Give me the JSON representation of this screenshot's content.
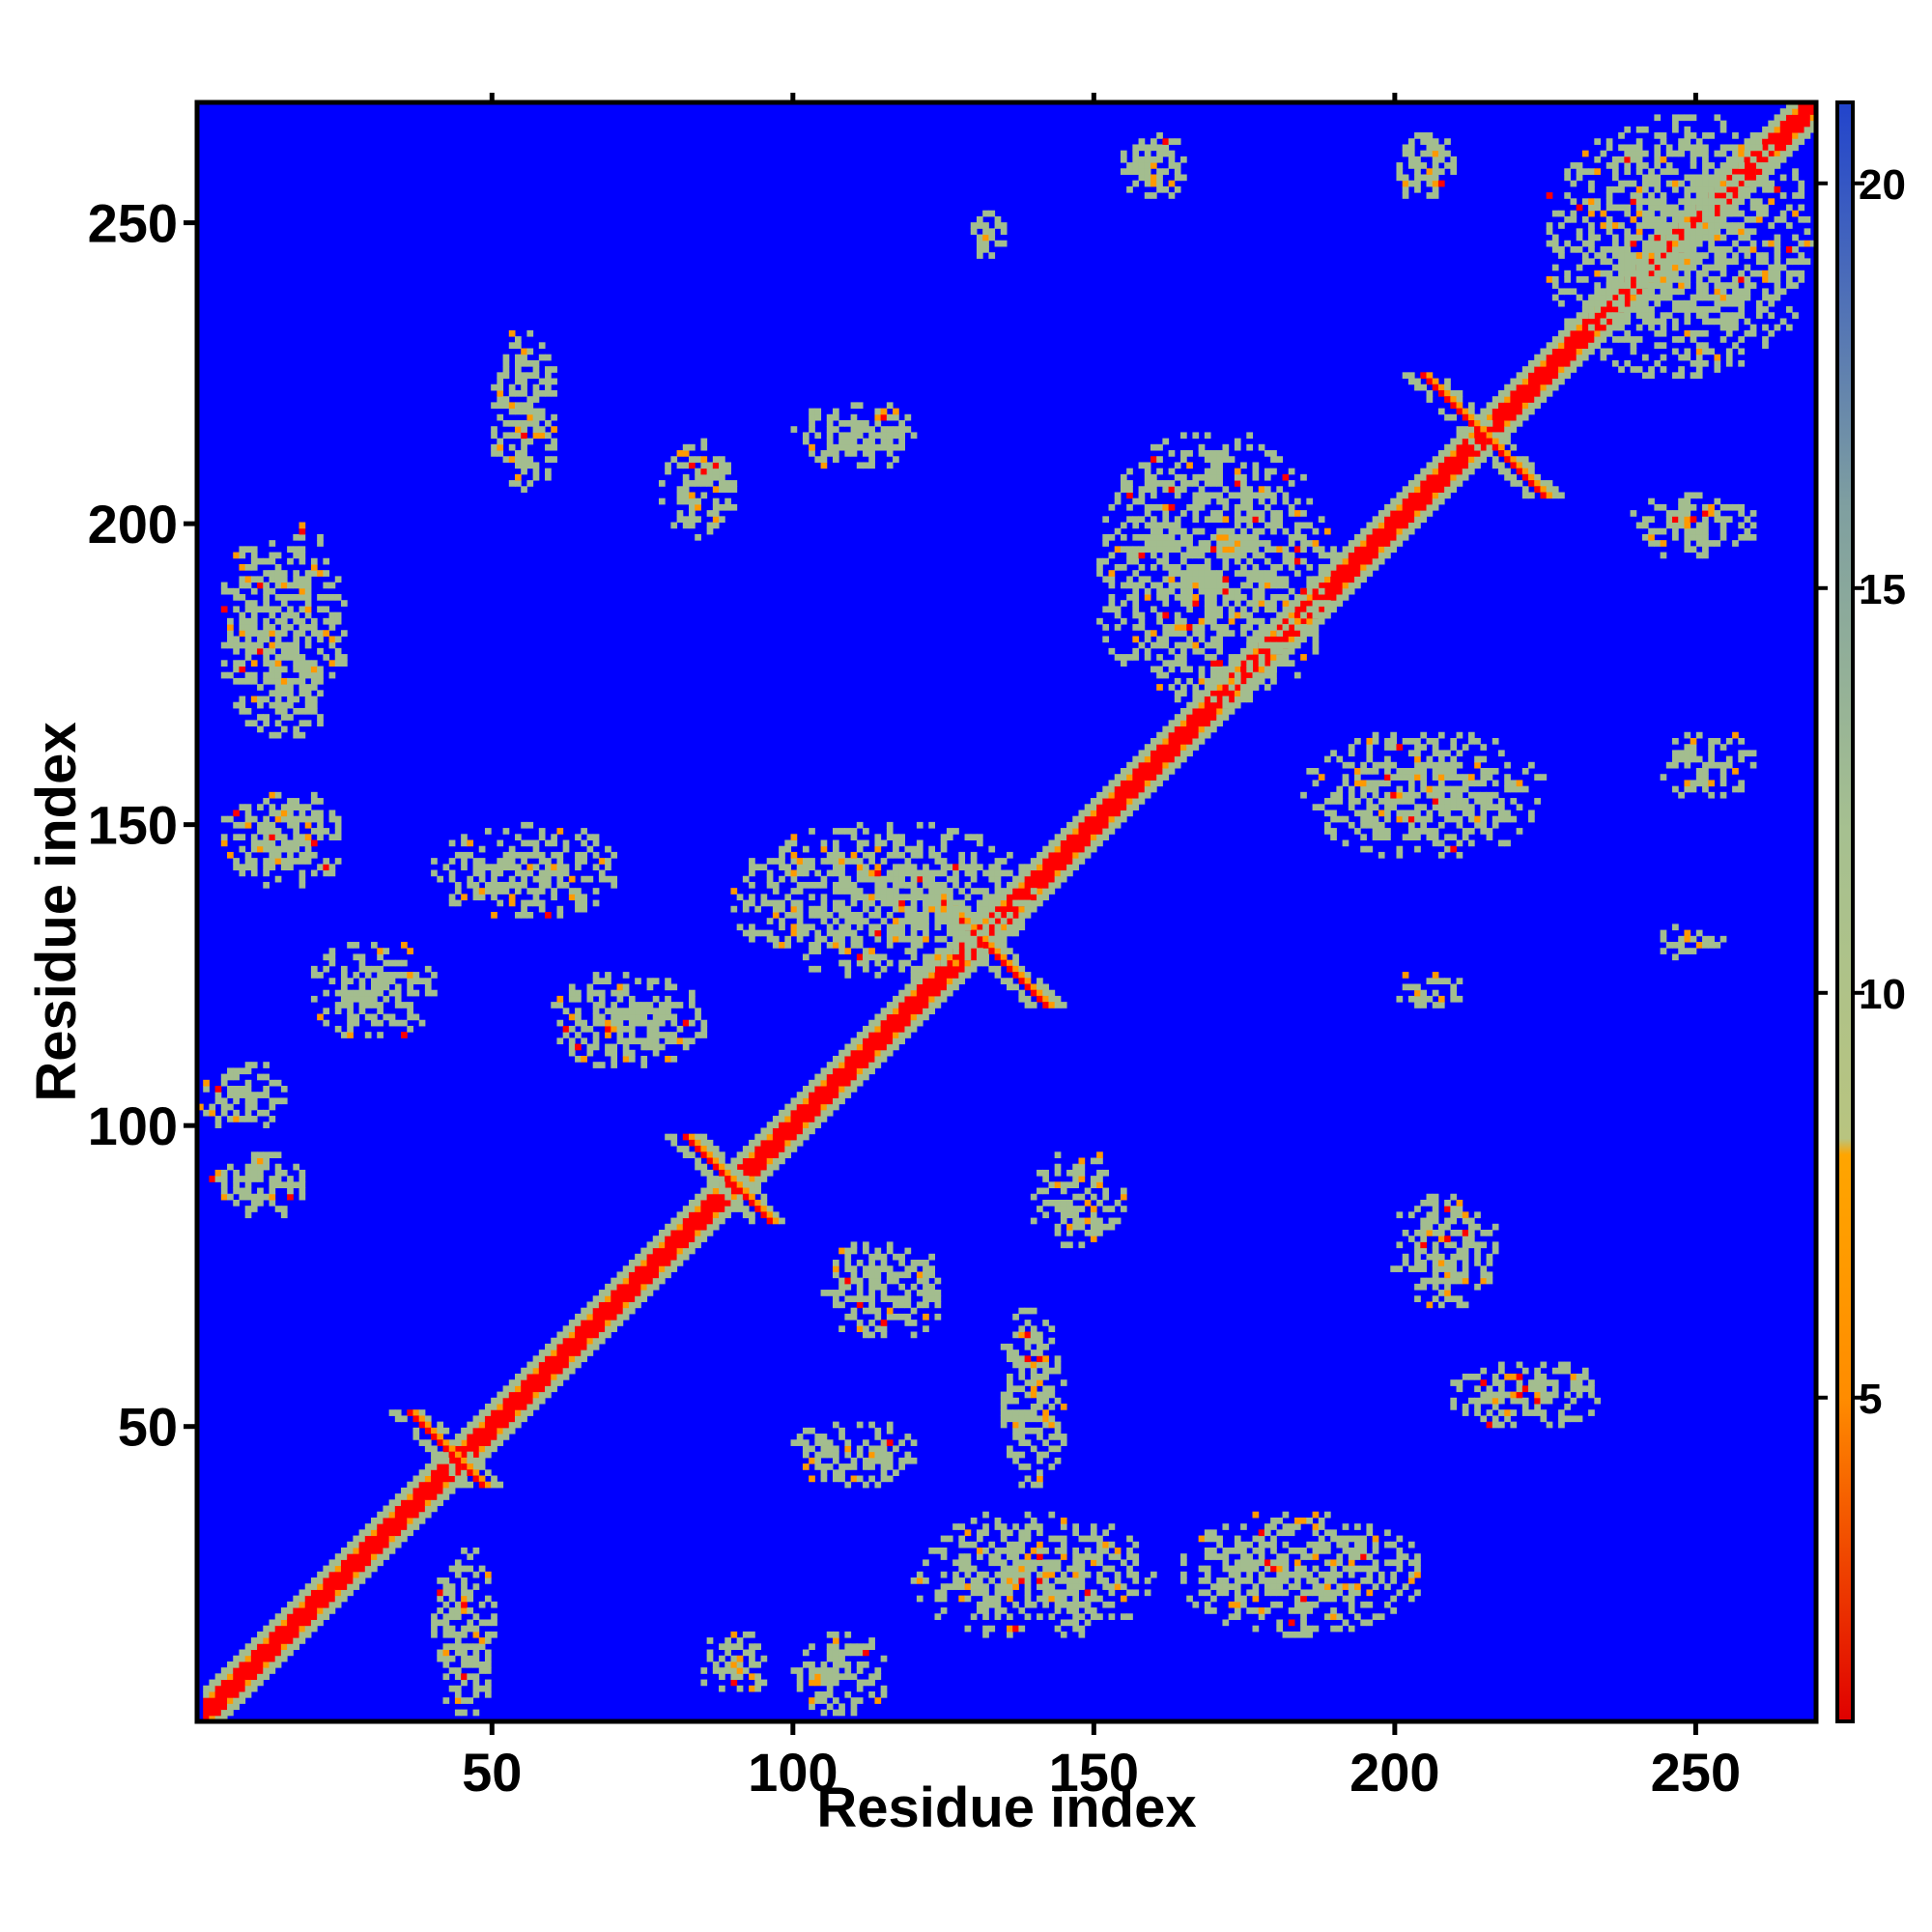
{
  "chart_data": {
    "type": "heatmap",
    "title": "",
    "xlabel": "Residue index",
    "ylabel": "Residue index",
    "n_residues": 270,
    "xlim": [
      1,
      270
    ],
    "ylim": [
      1,
      270
    ],
    "x_ticks": [
      50,
      100,
      150,
      200,
      250
    ],
    "y_ticks": [
      50,
      100,
      150,
      200,
      250
    ],
    "x_tick_labels": [
      "50",
      "100",
      "150",
      "200",
      "250"
    ],
    "y_tick_labels": [
      "50",
      "100",
      "150",
      "200",
      "250"
    ],
    "colorbar": {
      "range": [
        1,
        21
      ],
      "ticks": [
        5,
        10,
        15,
        20
      ],
      "tick_labels": [
        "5",
        "10",
        "15",
        "20"
      ],
      "stops": [
        {
          "value": 1,
          "color": "#e00000"
        },
        {
          "value": 5,
          "color": "#ff8c00"
        },
        {
          "value": 8,
          "color": "#ffa500"
        },
        {
          "value": 8.2,
          "color": "#b8c480"
        },
        {
          "value": 12,
          "color": "#a6c090"
        },
        {
          "value": 16,
          "color": "#7f9fa0"
        },
        {
          "value": 21,
          "color": "#2244cc"
        }
      ]
    },
    "background_color": "#0000ff",
    "colors": {
      "contact_close": "#ff0000",
      "contact_mid": "#ff9900",
      "contact_far": "#a3bd8f",
      "no_contact": "#0000ff"
    },
    "contact_regions": [
      {
        "i": [
          2,
          270
        ],
        "j": [
          2,
          270
        ],
        "kind": "diagonal"
      },
      {
        "i": [
          36,
          48
        ],
        "j": [
          36,
          52
        ],
        "kind": "antiparallel"
      },
      {
        "i": [
          82,
          96
        ],
        "j": [
          82,
          98
        ],
        "kind": "antiparallel"
      },
      {
        "i": [
          120,
          142
        ],
        "j": [
          120,
          142
        ],
        "kind": "antiparallel"
      },
      {
        "i": [
          205,
          225
        ],
        "j": [
          203,
          225
        ],
        "kind": "antiparallel"
      },
      {
        "i": [
          78,
          90
        ],
        "j": [
          198,
          214
        ],
        "kind": "patch"
      },
      {
        "i": [
          200,
          218
        ],
        "j": [
          70,
          88
        ],
        "kind": "patch"
      },
      {
        "i": [
          90,
          140
        ],
        "j": [
          125,
          150
        ],
        "kind": "patch"
      },
      {
        "i": [
          150,
          190
        ],
        "j": [
          170,
          215
        ],
        "kind": "patch"
      },
      {
        "i": [
          185,
          225
        ],
        "j": [
          145,
          165
        ],
        "kind": "patch"
      },
      {
        "i": [
          5,
          25
        ],
        "j": [
          165,
          200
        ],
        "kind": "patch"
      },
      {
        "i": [
          5,
          25
        ],
        "j": [
          140,
          155
        ],
        "kind": "patch"
      },
      {
        "i": [
          40,
          70
        ],
        "j": [
          135,
          150
        ],
        "kind": "patch"
      },
      {
        "i": [
          20,
          40
        ],
        "j": [
          115,
          130
        ],
        "kind": "patch"
      },
      {
        "i": [
          60,
          85
        ],
        "j": [
          110,
          125
        ],
        "kind": "patch"
      },
      {
        "i": [
          1,
          15
        ],
        "j": [
          100,
          110
        ],
        "kind": "patch"
      },
      {
        "i": [
          3,
          18
        ],
        "j": [
          85,
          95
        ],
        "kind": "patch"
      },
      {
        "i": [
          140,
          155
        ],
        "j": [
          80,
          95
        ],
        "kind": "patch"
      },
      {
        "i": [
          105,
          125
        ],
        "j": [
          65,
          80
        ],
        "kind": "patch"
      },
      {
        "i": [
          135,
          145
        ],
        "j": [
          40,
          70
        ],
        "kind": "patch"
      },
      {
        "i": [
          100,
          120
        ],
        "j": [
          40,
          50
        ],
        "kind": "patch"
      },
      {
        "i": [
          165,
          205
        ],
        "j": [
          15,
          35
        ],
        "kind": "patch"
      },
      {
        "i": [
          120,
          160
        ],
        "j": [
          15,
          35
        ],
        "kind": "patch"
      },
      {
        "i": [
          85,
          95
        ],
        "j": [
          5,
          15
        ],
        "kind": "patch"
      },
      {
        "i": [
          100,
          115
        ],
        "j": [
          2,
          15
        ],
        "kind": "patch"
      },
      {
        "i": [
          40,
          50
        ],
        "j": [
          2,
          30
        ],
        "kind": "patch"
      },
      {
        "i": [
          210,
          235
        ],
        "j": [
          50,
          60
        ],
        "kind": "patch"
      },
      {
        "i": [
          200,
          212
        ],
        "j": [
          120,
          125
        ],
        "kind": "patch"
      },
      {
        "i": [
          155,
          165
        ],
        "j": [
          255,
          265
        ],
        "kind": "patch"
      },
      {
        "i": [
          200,
          210
        ],
        "j": [
          255,
          265
        ],
        "kind": "patch"
      },
      {
        "i": [
          225,
          270
        ],
        "j": [
          225,
          268
        ],
        "kind": "patch"
      },
      {
        "i": [
          100,
          120
        ],
        "j": [
          210,
          220
        ],
        "kind": "patch"
      },
      {
        "i": [
          50,
          60
        ],
        "j": [
          205,
          232
        ],
        "kind": "patch"
      },
      {
        "i": [
          240,
          260
        ],
        "j": [
          195,
          205
        ],
        "kind": "patch"
      },
      {
        "i": [
          245,
          260
        ],
        "j": [
          155,
          165
        ],
        "kind": "patch"
      },
      {
        "i": [
          245,
          255
        ],
        "j": [
          128,
          133
        ],
        "kind": "patch"
      },
      {
        "i": [
          130,
          135
        ],
        "j": [
          245,
          252
        ],
        "kind": "patch"
      }
    ]
  }
}
